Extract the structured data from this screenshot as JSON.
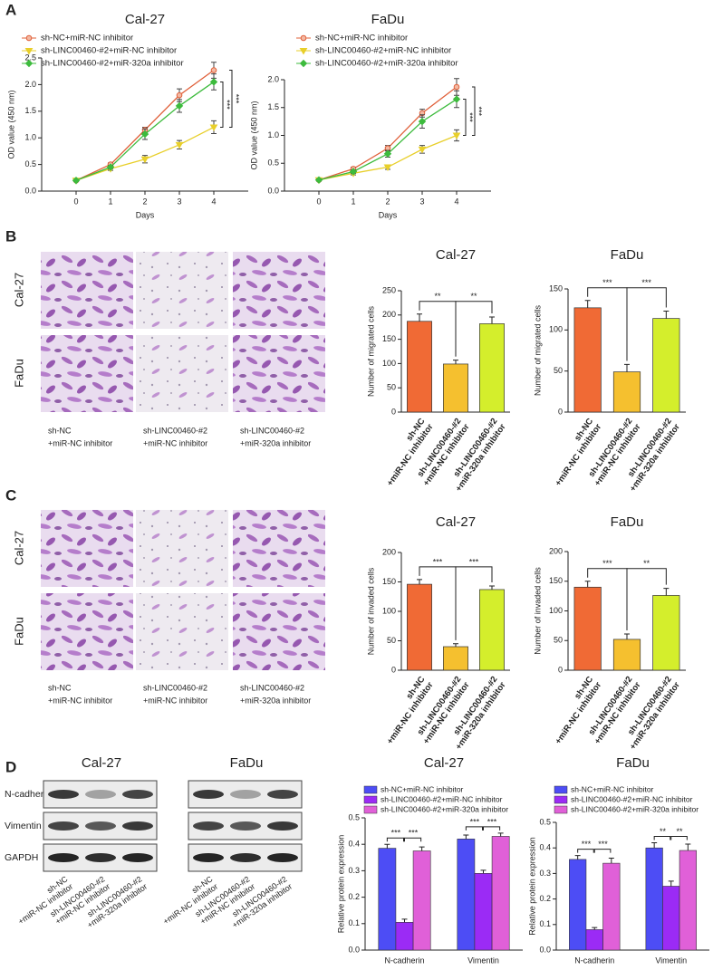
{
  "panel_labels": [
    "A",
    "B",
    "C",
    "D"
  ],
  "image_panels": [
    {
      "rows": [
        "Cal-27",
        "FaDu"
      ],
      "columns": [
        [
          "sh-NC",
          "+miR-NC inhibitor"
        ],
        [
          "sh-LINC00460-#2",
          "+miR-NC inhibitor"
        ],
        [
          "sh-LINC00460-#2",
          "+miR-320a inhibitor"
        ]
      ]
    },
    {
      "rows": [
        "Cal-27",
        "FaDu"
      ],
      "columns": [
        [
          "sh-NC",
          "+miR-NC inhibitor"
        ],
        [
          "sh-LINC00460-#2",
          "+miR-NC inhibitor"
        ],
        [
          "sh-LINC00460-#2",
          "+miR-320a inhibitor"
        ]
      ]
    }
  ],
  "blot": {
    "cell_lines": [
      "Cal-27",
      "FaDu"
    ],
    "proteins": [
      "N-cadherin",
      "Vimentin",
      "GAPDH"
    ],
    "lanes": [
      [
        "sh-NC",
        "+miR-NC inhibitor"
      ],
      [
        "sh-LINC00460-#2",
        "+miR-NC inhibitor"
      ],
      [
        "sh-LINC00460-#2",
        "+miR-320a inhibitor"
      ]
    ]
  },
  "chart_data": [
    {
      "type": "line",
      "title": "Cal-27",
      "x_label": "Days",
      "y_label": "OD value (450 nm)",
      "x": [
        0,
        1,
        2,
        3,
        4
      ],
      "xlim": [
        -1,
        5
      ],
      "xticks": [
        0,
        1,
        2,
        3,
        4
      ],
      "ylim": [
        0,
        2.5
      ],
      "yticks": [
        {
          "value": 0,
          "label": "0.0"
        },
        0.5,
        {
          "value": 1,
          "label": "1.0"
        },
        1.5,
        {
          "value": 2,
          "label": "2.0"
        },
        2.5
      ],
      "series": [
        {
          "name": "sh-NC+miR-NC inhibitor",
          "color": "#e0603a",
          "marker": "circle",
          "values": [
            0.2,
            0.5,
            1.15,
            1.8,
            2.27
          ],
          "errors": [
            0.02,
            0.03,
            0.05,
            0.12,
            0.15
          ]
        },
        {
          "name": "sh-LINC00460-#2+miR-NC inhibitor",
          "color": "#e8cf2a",
          "marker": "triangle-down",
          "values": [
            0.2,
            0.42,
            0.6,
            0.87,
            1.2
          ],
          "errors": [
            0.02,
            0.03,
            0.07,
            0.08,
            0.12
          ]
        },
        {
          "name": "sh-LINC00460-#2+miR-320a inhibitor",
          "color": "#3dbb3d",
          "marker": "diamond",
          "values": [
            0.2,
            0.45,
            1.07,
            1.6,
            2.05
          ],
          "errors": [
            0.02,
            0.03,
            0.1,
            0.12,
            0.15
          ]
        }
      ],
      "annotations": [
        "***",
        "***"
      ]
    },
    {
      "type": "line",
      "title": "FaDu",
      "x_label": "Days",
      "y_label": "OD value (450 nm)",
      "x": [
        0,
        1,
        2,
        3,
        4
      ],
      "xlim": [
        -1,
        5
      ],
      "xticks": [
        0,
        1,
        2,
        3,
        4
      ],
      "ylim": [
        0,
        2
      ],
      "yticks": [
        {
          "value": 0,
          "label": "0.0"
        },
        0.5,
        {
          "value": 1,
          "label": "1.0"
        },
        1.5,
        {
          "value": 2,
          "label": "2.0"
        }
      ],
      "series": [
        {
          "name": "sh-NC+miR-NC inhibitor",
          "color": "#e0603a",
          "marker": "circle",
          "values": [
            0.2,
            0.4,
            0.77,
            1.4,
            1.87
          ],
          "errors": [
            0.02,
            0.03,
            0.05,
            0.07,
            0.15
          ]
        },
        {
          "name": "sh-LINC00460-#2+miR-NC inhibitor",
          "color": "#e8cf2a",
          "marker": "triangle-down",
          "values": [
            0.2,
            0.32,
            0.43,
            0.75,
            1.0
          ],
          "errors": [
            0.02,
            0.03,
            0.04,
            0.07,
            0.1
          ]
        },
        {
          "name": "sh-LINC00460-#2+miR-320a inhibitor",
          "color": "#3dbb3d",
          "marker": "diamond",
          "values": [
            0.2,
            0.35,
            0.67,
            1.25,
            1.65
          ],
          "errors": [
            0.02,
            0.03,
            0.06,
            0.12,
            0.15
          ]
        }
      ],
      "annotations": [
        "***",
        "***"
      ]
    },
    {
      "type": "bar",
      "title": "Cal-27",
      "y_label": "Number of migrated cells",
      "categories": [
        [
          "sh-NC",
          "+miR-NC inhibitor"
        ],
        [
          "sh-LINC00460-#2",
          "+miR-NC inhibitor"
        ],
        [
          "sh-LINC00460-#2",
          "+miR-320a inhibitor"
        ]
      ],
      "values": [
        187,
        99,
        182
      ],
      "errors": [
        15,
        8,
        14
      ],
      "colors": [
        "#f06a35",
        "#f5c02f",
        "#d4ee2c"
      ],
      "ylim": [
        0,
        250
      ],
      "yticks": [
        0,
        50,
        100,
        150,
        200,
        250
      ],
      "annotations": [
        "**",
        "**"
      ]
    },
    {
      "type": "bar",
      "title": "FaDu",
      "y_label": "Number of migrated cells",
      "categories": [
        [
          "sh-NC",
          "+miR-NC inhibitor"
        ],
        [
          "sh-LINC00460-#2",
          "+miR-NC inhibitor"
        ],
        [
          "sh-LINC00460-#2",
          "+miR-320a inhibitor"
        ]
      ],
      "values": [
        127,
        49,
        114
      ],
      "errors": [
        9,
        9,
        9
      ],
      "colors": [
        "#f06a35",
        "#f5c02f",
        "#d4ee2c"
      ],
      "ylim": [
        0,
        150
      ],
      "yticks": [
        0,
        50,
        100,
        150
      ],
      "annotations": [
        "***",
        "***"
      ]
    },
    {
      "type": "bar",
      "title": "Cal-27",
      "y_label": "Number of invaded cells",
      "categories": [
        [
          "sh-NC",
          "+miR-NC inhibitor"
        ],
        [
          "sh-LINC00460-#2",
          "+miR-NC inhibitor"
        ],
        [
          "sh-LINC00460-#2",
          "+miR-320a inhibitor"
        ]
      ],
      "values": [
        146,
        40,
        137
      ],
      "errors": [
        8,
        5,
        6
      ],
      "colors": [
        "#f06a35",
        "#f5c02f",
        "#d4ee2c"
      ],
      "ylim": [
        0,
        200
      ],
      "yticks": [
        0,
        50,
        100,
        150,
        200
      ],
      "annotations": [
        "***",
        "***"
      ]
    },
    {
      "type": "bar",
      "title": "FaDu",
      "y_label": "Number of invaded cells",
      "categories": [
        [
          "sh-NC",
          "+miR-NC inhibitor"
        ],
        [
          "sh-LINC00460-#2",
          "+miR-NC inhibitor"
        ],
        [
          "sh-LINC00460-#2",
          "+miR-320a inhibitor"
        ]
      ],
      "values": [
        140,
        52,
        126
      ],
      "errors": [
        10,
        9,
        12
      ],
      "colors": [
        "#f06a35",
        "#f5c02f",
        "#d4ee2c"
      ],
      "ylim": [
        0,
        200
      ],
      "yticks": [
        0,
        50,
        100,
        150,
        200
      ],
      "annotations": [
        "***",
        "**"
      ]
    },
    {
      "type": "grouped_bar",
      "title": "Cal-27",
      "y_label": "Relative protein expression",
      "categories": [
        "N-cadherin",
        "Vimentin"
      ],
      "ylim": [
        0,
        0.5
      ],
      "yticks": [
        {
          "value": 0,
          "label": "0.0"
        },
        0.1,
        0.2,
        0.3,
        0.4,
        0.5
      ],
      "series": [
        {
          "name": "sh-NC+miR-NC inhibitor",
          "color": "#4d4df5",
          "values": [
            0.385,
            0.42
          ],
          "errors": [
            0.015,
            0.015
          ]
        },
        {
          "name": "sh-LINC00460-#2+miR-NC inhibitor",
          "color": "#9b2bf5",
          "values": [
            0.105,
            0.29
          ],
          "errors": [
            0.012,
            0.012
          ]
        },
        {
          "name": "sh-LINC00460-#2+miR-320a inhibitor",
          "color": "#e060d8",
          "values": [
            0.375,
            0.43
          ],
          "errors": [
            0.015,
            0.012
          ]
        }
      ],
      "annotations": [
        "***",
        "***",
        "***",
        "***"
      ]
    },
    {
      "type": "grouped_bar",
      "title": "FaDu",
      "y_label": "Relative protein expression",
      "categories": [
        "N-cadherin",
        "Vimentin"
      ],
      "ylim": [
        0,
        0.5
      ],
      "yticks": [
        {
          "value": 0,
          "label": "0.0"
        },
        0.1,
        0.2,
        0.3,
        0.4,
        0.5
      ],
      "series": [
        {
          "name": "sh-NC+miR-NC inhibitor",
          "color": "#4d4df5",
          "values": [
            0.355,
            0.4
          ],
          "errors": [
            0.015,
            0.02
          ]
        },
        {
          "name": "sh-LINC00460-#2+miR-NC inhibitor",
          "color": "#9b2bf5",
          "values": [
            0.08,
            0.25
          ],
          "errors": [
            0.008,
            0.02
          ]
        },
        {
          "name": "sh-LINC00460-#2+miR-320a inhibitor",
          "color": "#e060d8",
          "values": [
            0.34,
            0.39
          ],
          "errors": [
            0.02,
            0.025
          ]
        }
      ],
      "annotations": [
        "***",
        "***",
        "**",
        "**"
      ]
    }
  ]
}
